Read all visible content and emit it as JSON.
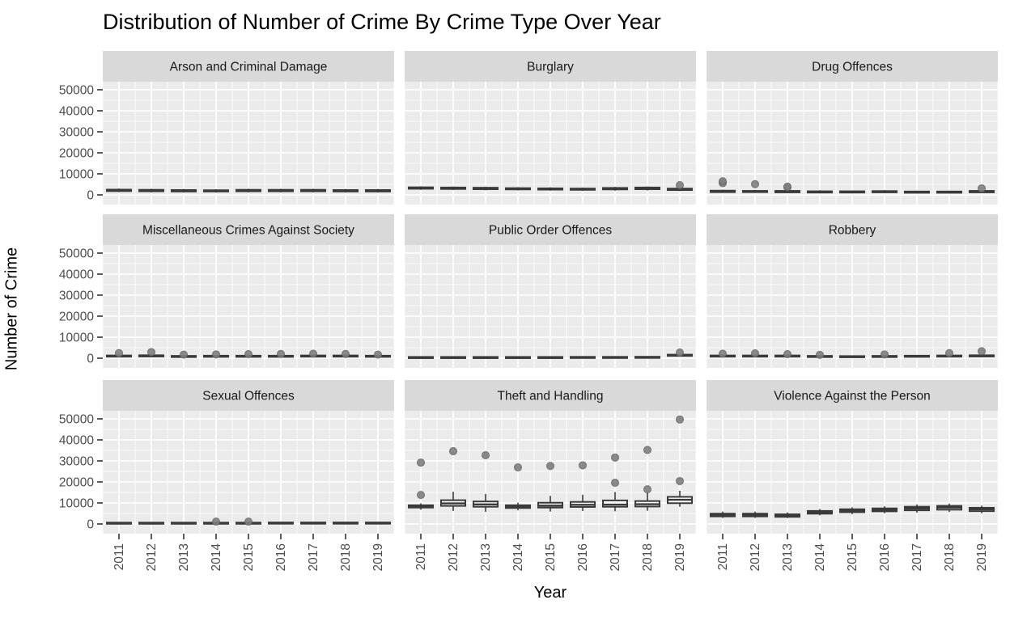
{
  "title": "Distribution of Number of Crime By Crime Type Over Year",
  "y_axis": {
    "label": "Number of Crime",
    "tick_values": [
      0,
      10000,
      20000,
      30000,
      40000,
      50000
    ],
    "tick_labels": [
      "0",
      "10000",
      "20000",
      "30000",
      "40000",
      "50000"
    ]
  },
  "x_axis": {
    "label": "Year",
    "tick_labels": [
      "2011",
      "2012",
      "2013",
      "2014",
      "2015",
      "2016",
      "2017",
      "2018",
      "2019"
    ]
  },
  "colors": {
    "panel_bg": "#EBEBEB",
    "strip_bg": "#D9D9D9",
    "grid": "#FFFFFF",
    "box_stroke": "#3A3A3A",
    "box_fill": "#FFFFFF",
    "outlier_fill": "#7F7F7F",
    "outlier_stroke": "#646464",
    "tick_text": "#4D4D4D",
    "tick_mark": "#333333",
    "strip_text": "#1A1A1A"
  },
  "chart_data": {
    "type": "boxplot",
    "facet_layout": "3x3",
    "title": "Distribution of Number of Crime By Crime Type Over Year",
    "xlabel": "Year",
    "ylabel": "Number of Crime",
    "ylim": [
      -4600,
      53800
    ],
    "x": [
      "2011",
      "2012",
      "2013",
      "2014",
      "2015",
      "2016",
      "2017",
      "2018",
      "2019"
    ],
    "box_format": [
      "whisker_low",
      "q1",
      "median",
      "q3",
      "whisker_high",
      "outliers"
    ],
    "series": [
      {
        "name": "Arson and Criminal Damage",
        "boxes": [
          [
            1300,
            1800,
            2100,
            2500,
            3000,
            []
          ],
          [
            1200,
            1700,
            2000,
            2400,
            2900,
            []
          ],
          [
            1100,
            1600,
            1900,
            2300,
            2800,
            []
          ],
          [
            1100,
            1600,
            1900,
            2200,
            2700,
            []
          ],
          [
            1200,
            1700,
            2000,
            2400,
            2900,
            []
          ],
          [
            1200,
            1700,
            2000,
            2400,
            2900,
            []
          ],
          [
            1200,
            1700,
            2000,
            2400,
            2900,
            []
          ],
          [
            1100,
            1600,
            1900,
            2300,
            2800,
            []
          ],
          [
            1100,
            1600,
            1900,
            2300,
            2800,
            []
          ]
        ]
      },
      {
        "name": "Burglary",
        "boxes": [
          [
            2400,
            2900,
            3200,
            3600,
            4100,
            []
          ],
          [
            2300,
            2800,
            3100,
            3500,
            4000,
            []
          ],
          [
            2200,
            2700,
            3000,
            3400,
            3900,
            []
          ],
          [
            2100,
            2600,
            2900,
            3200,
            3700,
            []
          ],
          [
            2000,
            2500,
            2800,
            3100,
            3600,
            []
          ],
          [
            1900,
            2400,
            2700,
            3000,
            3500,
            []
          ],
          [
            2000,
            2600,
            2900,
            3300,
            3800,
            []
          ],
          [
            2100,
            2700,
            3100,
            3500,
            4000,
            []
          ],
          [
            1800,
            2300,
            2600,
            3000,
            3400,
            [
              4600
            ]
          ]
        ]
      },
      {
        "name": "Drug Offences",
        "boxes": [
          [
            900,
            1300,
            1600,
            2000,
            2500,
            [
              5600,
              6500
            ]
          ],
          [
            900,
            1300,
            1600,
            1900,
            2400,
            [
              5100
            ]
          ],
          [
            800,
            1200,
            1500,
            1900,
            2400,
            [
              3600,
              3900
            ]
          ],
          [
            700,
            1100,
            1400,
            1700,
            2200,
            []
          ],
          [
            700,
            1100,
            1400,
            1700,
            2100,
            []
          ],
          [
            800,
            1200,
            1500,
            1800,
            2300,
            []
          ],
          [
            700,
            1000,
            1300,
            1600,
            2000,
            []
          ],
          [
            700,
            1000,
            1300,
            1600,
            2000,
            []
          ],
          [
            800,
            1200,
            1500,
            1900,
            2400,
            [
              3100
            ]
          ]
        ]
      },
      {
        "name": "Miscellaneous Crimes Against Society",
        "boxes": [
          [
            500,
            800,
            1000,
            1300,
            1700,
            [
              2400
            ]
          ],
          [
            500,
            800,
            1100,
            1400,
            1800,
            [
              2900
            ]
          ],
          [
            400,
            700,
            900,
            1100,
            1500,
            [
              1700
            ]
          ],
          [
            400,
            700,
            900,
            1200,
            1500,
            [
              1800
            ]
          ],
          [
            400,
            700,
            900,
            1200,
            1600,
            [
              1900
            ]
          ],
          [
            400,
            700,
            1000,
            1200,
            1600,
            [
              2000
            ]
          ],
          [
            500,
            800,
            1000,
            1300,
            1700,
            [
              2100
            ]
          ],
          [
            500,
            800,
            1000,
            1300,
            1600,
            [
              2000
            ]
          ],
          [
            400,
            700,
            900,
            1200,
            1500,
            [
              1700
            ]
          ]
        ]
      },
      {
        "name": "Public Order Offences",
        "boxes": [
          [
            150,
            300,
            450,
            600,
            800,
            []
          ],
          [
            150,
            300,
            450,
            600,
            800,
            []
          ],
          [
            150,
            300,
            450,
            600,
            800,
            []
          ],
          [
            150,
            300,
            450,
            600,
            850,
            []
          ],
          [
            150,
            300,
            450,
            600,
            850,
            []
          ],
          [
            150,
            300,
            500,
            650,
            900,
            []
          ],
          [
            150,
            350,
            500,
            650,
            900,
            []
          ],
          [
            200,
            350,
            500,
            700,
            950,
            []
          ],
          [
            700,
            1100,
            1400,
            1700,
            2100,
            [
              2700
            ]
          ]
        ]
      },
      {
        "name": "Robbery",
        "boxes": [
          [
            500,
            800,
            1000,
            1300,
            1600,
            [
              2100
            ]
          ],
          [
            500,
            800,
            1100,
            1300,
            1700,
            [
              2300
            ]
          ],
          [
            500,
            800,
            1000,
            1300,
            1700,
            [
              1900
            ]
          ],
          [
            400,
            700,
            900,
            1100,
            1400,
            [
              1600
            ]
          ],
          [
            400,
            600,
            800,
            1000,
            1300,
            []
          ],
          [
            400,
            700,
            900,
            1100,
            1400,
            [
              1800
            ]
          ],
          [
            400,
            700,
            900,
            1200,
            1500,
            []
          ],
          [
            500,
            800,
            1000,
            1300,
            1600,
            [
              2400
            ]
          ],
          [
            500,
            800,
            1100,
            1400,
            1800,
            [
              3300
            ]
          ]
        ]
      },
      {
        "name": "Sexual Offences",
        "boxes": [
          [
            200,
            350,
            500,
            650,
            800,
            []
          ],
          [
            200,
            350,
            500,
            650,
            800,
            []
          ],
          [
            200,
            350,
            500,
            650,
            800,
            []
          ],
          [
            200,
            350,
            500,
            650,
            850,
            [
              1100
            ]
          ],
          [
            200,
            350,
            500,
            650,
            850,
            [
              1100
            ]
          ],
          [
            200,
            400,
            550,
            700,
            900,
            []
          ],
          [
            200,
            400,
            550,
            700,
            900,
            []
          ],
          [
            200,
            400,
            550,
            700,
            900,
            []
          ],
          [
            200,
            400,
            550,
            700,
            900,
            []
          ]
        ]
      },
      {
        "name": "Theft and Handling",
        "boxes": [
          [
            6800,
            7800,
            8300,
            8900,
            9800,
            [
              13800,
              29200
            ]
          ],
          [
            6200,
            8600,
            9800,
            11300,
            15300,
            [
              34600
            ]
          ],
          [
            5800,
            8200,
            9300,
            10700,
            14300,
            [
              32700
            ]
          ],
          [
            6500,
            7600,
            8200,
            8900,
            10100,
            [
              26900
            ]
          ],
          [
            5900,
            7800,
            8700,
            10100,
            13400,
            [
              27600
            ]
          ],
          [
            6200,
            8100,
            9100,
            10500,
            13900,
            [
              27900
            ]
          ],
          [
            6000,
            8200,
            9200,
            11200,
            15200,
            [
              19600,
              31600
            ]
          ],
          [
            6300,
            8300,
            9400,
            10900,
            14800,
            [
              16500,
              35200
            ]
          ],
          [
            8200,
            9900,
            11500,
            12900,
            15800,
            [
              20400,
              49700
            ]
          ]
        ]
      },
      {
        "name": "Violence Against the Person",
        "boxes": [
          [
            2900,
            3600,
            4200,
            4900,
            5900,
            []
          ],
          [
            2900,
            3600,
            4200,
            4900,
            5900,
            []
          ],
          [
            2800,
            3400,
            4000,
            4600,
            5500,
            []
          ],
          [
            4100,
            4900,
            5600,
            6200,
            7100,
            []
          ],
          [
            4700,
            5600,
            6300,
            7000,
            7900,
            []
          ],
          [
            5100,
            6000,
            6800,
            7400,
            8400,
            []
          ],
          [
            5400,
            6500,
            7400,
            8200,
            9300,
            []
          ],
          [
            5700,
            6800,
            7800,
            8600,
            9700,
            []
          ],
          [
            5100,
            6100,
            7000,
            7700,
            8700,
            []
          ]
        ]
      }
    ]
  }
}
